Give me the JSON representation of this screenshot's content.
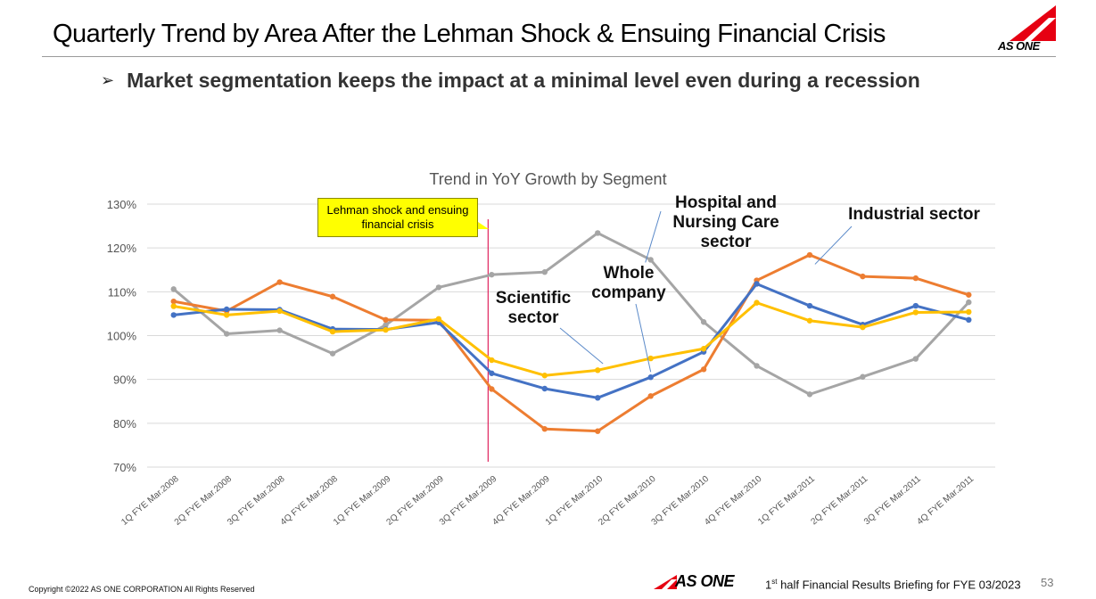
{
  "slide": {
    "title": "Quarterly Trend by Area After the Lehman Shock & Ensuing Financial Crisis",
    "bullet": "➢",
    "subtitle": "Market segmentation keeps the impact at a minimal level even during a recession",
    "logo_text": "AS ONE",
    "copyright": "Copyright ©2022 AS ONE CORPORATION All Rights Reserved",
    "footer_logo_text": "AS ONE",
    "footer_brief_ordinal": "1",
    "footer_brief_suffix": "st",
    "footer_brief_rest": " half Financial Results Briefing for FYE 03/2023",
    "page_number": "53"
  },
  "colors": {
    "whole": "#4472c4",
    "industrial": "#ed7d31",
    "hospital": "#a5a5a5",
    "scientific": "#ffc000",
    "brand_red": "#e60012",
    "event_line": "#e0245e"
  },
  "chart_data": {
    "type": "line",
    "title": "Trend in YoY Growth by Segment",
    "xlabel": "",
    "ylabel": "",
    "ylim": [
      70,
      130
    ],
    "yticks": [
      "70%",
      "80%",
      "90%",
      "100%",
      "110%",
      "120%",
      "130%"
    ],
    "ytick_values": [
      70,
      80,
      90,
      100,
      110,
      120,
      130
    ],
    "grid": true,
    "categories": [
      "1Q FYE Mar.2008",
      "2Q FYE Mar.2008",
      "3Q FYE Mar.2008",
      "4Q FYE Mar.2008",
      "1Q FYE Mar.2009",
      "2Q FYE Mar.2009",
      "3Q FYE Mar.2009",
      "4Q FYE Mar.2009",
      "1Q FYE Mar.2010",
      "2Q FYE Mar.2010",
      "3Q FYE Mar.2010",
      "4Q FYE Mar.2010",
      "1Q FYE Mar.2011",
      "2Q FYE Mar.2011",
      "3Q FYE Mar.2011",
      "4Q FYE Mar.2011"
    ],
    "series": [
      {
        "name": "Hospital and Nursing Care sector",
        "key": "hospital",
        "values": [
          110.6,
          100.4,
          101.2,
          95.9,
          102.4,
          111.0,
          113.9,
          114.5,
          123.4,
          117.3,
          103.1,
          93.1,
          86.6,
          90.6,
          94.7,
          107.6
        ]
      },
      {
        "name": "Industrial sector",
        "key": "industrial",
        "values": [
          107.8,
          105.6,
          112.2,
          108.9,
          103.6,
          103.5,
          87.8,
          78.7,
          78.2,
          86.2,
          92.3,
          112.6,
          118.4,
          113.5,
          113.1,
          109.3
        ]
      },
      {
        "name": "Whole company",
        "key": "whole",
        "values": [
          104.7,
          106.0,
          105.9,
          101.5,
          101.4,
          103.0,
          91.4,
          87.9,
          85.8,
          90.5,
          96.3,
          111.8,
          106.8,
          102.5,
          106.8,
          103.6
        ]
      },
      {
        "name": "Scientific sector",
        "key": "scientific",
        "values": [
          106.7,
          104.7,
          105.6,
          100.9,
          101.3,
          103.8,
          94.4,
          90.9,
          92.1,
          94.8,
          97.0,
          107.5,
          103.4,
          101.9,
          105.3,
          105.4
        ]
      }
    ],
    "event_label": "Lehman shock and ensuing financial crisis",
    "event_position": 6,
    "annotations": [
      {
        "key": "hospital",
        "text": "Hospital and Nursing Care sector",
        "lines": [
          "Hospital and",
          "Nursing Care",
          "sector"
        ]
      },
      {
        "key": "industrial",
        "text": "Industrial sector",
        "lines": [
          "Industrial sector"
        ]
      },
      {
        "key": "whole",
        "text": "Whole company",
        "lines": [
          "Whole",
          "company"
        ]
      },
      {
        "key": "scientific",
        "text": "Scientific sector",
        "lines": [
          "Scientific",
          "sector"
        ]
      }
    ]
  }
}
